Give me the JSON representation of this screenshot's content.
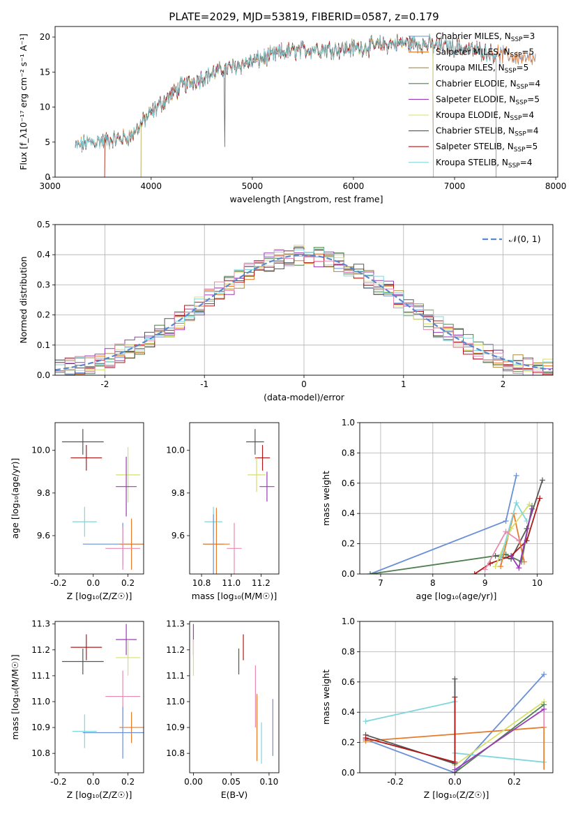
{
  "figure": {
    "title": "PLATE=2029, MJD=53819, FIBERID=0587, z=0.179"
  },
  "colors": {
    "Chabrier MILES": "#6a8fd6",
    "Salpeter MILES": "#e87b2a",
    "Kroupa MILES": "#a98a3a",
    "Chabrier ELODIE": "#4f7f4f",
    "Salpeter ELODIE": "#9a3ab6",
    "Kroupa ELODIE": "#d6e06a",
    "Chabrier STELIB": "#555555",
    "Salpeter STELIB": "#b01818",
    "Kroupa STELIB": "#7fd6db",
    "pink": "#e88ab0",
    "gauss": "#5b86d0"
  },
  "chart_data": [
    {
      "id": "spectrum",
      "type": "line",
      "title": "PLATE=2029, MJD=53819, FIBERID=0587, z=0.179",
      "xlabel": "wavelength [Angstrom, rest frame]",
      "ylabel": "Flux [f_λ10⁻¹⁷ erg cm⁻² s⁻¹ A⁻¹]",
      "xlim": [
        3050,
        8020
      ],
      "ylim": [
        0,
        21.5
      ],
      "xticks": [
        3000,
        4000,
        5000,
        6000,
        7000,
        8000
      ],
      "yticks": [
        0,
        5,
        10,
        15,
        20
      ],
      "grid": false,
      "legend_position": "right",
      "continuum": [
        [
          3250,
          4.3
        ],
        [
          3400,
          5.0
        ],
        [
          3600,
          5.3
        ],
        [
          3800,
          5.8
        ],
        [
          3950,
          8.5
        ],
        [
          4100,
          10.5
        ],
        [
          4300,
          13.0
        ],
        [
          4500,
          14.2
        ],
        [
          4700,
          15.3
        ],
        [
          5000,
          16.5
        ],
        [
          5300,
          17.8
        ],
        [
          5600,
          18.3
        ],
        [
          5900,
          18.3
        ],
        [
          6200,
          18.7
        ],
        [
          6500,
          19.2
        ],
        [
          6800,
          18.8
        ],
        [
          7100,
          18.4
        ],
        [
          7400,
          17.6
        ],
        [
          7800,
          16.6
        ]
      ],
      "series": [
        {
          "name": "Chabrier MILES",
          "label": "Chabrier MILES, N",
          "nssp": "=3",
          "xmax": 7800
        },
        {
          "name": "Salpeter MILES",
          "label": "Salpeter MILES, N",
          "nssp": "=5",
          "xmax": 7800
        },
        {
          "name": "Kroupa MILES",
          "label": "Kroupa MILES, N",
          "nssp": "=5",
          "xmin": 3540,
          "xmax": 6790
        },
        {
          "name": "Chabrier ELODIE",
          "label": "Chabrier ELODIE, N",
          "nssp": "=4",
          "xmin": 3900,
          "xmax": 6790
        },
        {
          "name": "Salpeter ELODIE",
          "label": "Salpeter ELODIE, N",
          "nssp": "=5",
          "xmin": 3900,
          "xmax": 6790
        },
        {
          "name": "Kroupa ELODIE",
          "label": "Kroupa ELODIE, N",
          "nssp": "=4",
          "xmin": 3900,
          "xmax": 6790
        },
        {
          "name": "Chabrier STELIB",
          "label": "Chabrier STELIB, N",
          "nssp": "=4",
          "xmax": 7410
        },
        {
          "name": "Salpeter STELIB",
          "label": "Salpeter STELIB, N",
          "nssp": "=5",
          "xmin": 3540,
          "xmax": 7410
        },
        {
          "name": "Kroupa STELIB",
          "label": "Kroupa STELIB, N",
          "nssp": "=4",
          "xmax": 7410
        }
      ],
      "nssp_subscript": "SSP"
    },
    {
      "id": "residuals",
      "type": "line",
      "xlabel": "(data-model)/error",
      "ylabel": "Normed distribution",
      "xlim": [
        -2.5,
        2.5
      ],
      "ylim": [
        0,
        0.5
      ],
      "xticks": [
        -2,
        -1,
        0,
        1,
        2
      ],
      "yticks": [
        0.0,
        0.1,
        0.2,
        0.3,
        0.4,
        0.5
      ],
      "grid": true,
      "legend_position": "top-right",
      "gauss_label": "𝒩(0, 1)",
      "bin_width": 0.1
    },
    {
      "id": "age-vs-Z",
      "type": "scatter",
      "xlabel": "Z [log₁₀(Z/Z☉)]",
      "ylabel": "age  [log₁₀(age/yr)]",
      "xlim": [
        -0.22,
        0.29
      ],
      "ylim": [
        9.42,
        10.13
      ],
      "xticks": [
        -0.2,
        0.0,
        0.2
      ],
      "yticks": [
        9.6,
        9.8,
        10.0
      ],
      "grid": false,
      "points": [
        {
          "s": "Chabrier STELIB",
          "x": -0.06,
          "xerr": 0.12,
          "y": 10.04,
          "yerr": 0.06
        },
        {
          "s": "Salpeter STELIB",
          "x": -0.04,
          "xerr": 0.09,
          "y": 9.965,
          "yerr": 0.06
        },
        {
          "s": "Kroupa ELODIE",
          "x": 0.2,
          "xerr": 0.07,
          "y": 9.885,
          "yerr": 0.13
        },
        {
          "s": "Salpeter ELODIE",
          "x": 0.19,
          "xerr": 0.06,
          "y": 9.83,
          "yerr": 0.14
        },
        {
          "s": "Kroupa STELIB",
          "x": -0.05,
          "xerr": 0.07,
          "y": 9.665,
          "yerr": 0.07
        },
        {
          "s": "Chabrier MILES",
          "x": 0.17,
          "xerr": 0.23,
          "y": 9.56,
          "yerr": 0.1
        },
        {
          "s": "Salpeter MILES",
          "x": 0.22,
          "xerr": 0.07,
          "y": 9.56,
          "yerr": 0.12
        },
        {
          "s": "pink",
          "x": 0.17,
          "xerr": 0.1,
          "y": 9.54,
          "yerr": 0.1
        }
      ]
    },
    {
      "id": "age-vs-mass",
      "type": "scatter",
      "xlabel": "mass [log₁₀(M/M☉)]",
      "ylim": [
        9.42,
        10.13
      ],
      "xlim": [
        10.72,
        11.32
      ],
      "xticks": [
        10.8,
        11.0,
        11.2
      ],
      "yticks": [
        9.6,
        9.8,
        10.0
      ],
      "grid": false,
      "points": [
        {
          "s": "Chabrier STELIB",
          "x": 11.16,
          "xerr": 0.06,
          "y": 10.04,
          "yerr": 0.06
        },
        {
          "s": "Salpeter STELIB",
          "x": 11.21,
          "xerr": 0.05,
          "y": 9.965,
          "yerr": 0.06
        },
        {
          "s": "Kroupa ELODIE",
          "x": 11.17,
          "xerr": 0.06,
          "y": 9.885,
          "yerr": 0.08
        },
        {
          "s": "Salpeter ELODIE",
          "x": 11.24,
          "xerr": 0.05,
          "y": 9.83,
          "yerr": 0.07
        },
        {
          "s": "Kroupa STELIB",
          "x": 10.88,
          "xerr": 0.06,
          "y": 9.665,
          "yerr": 0.07
        },
        {
          "s": "Chabrier MILES",
          "x": 10.88,
          "xerr": 0.07,
          "y": 9.56,
          "yerr": 0.14
        },
        {
          "s": "Salpeter MILES",
          "x": 10.9,
          "xerr": 0.09,
          "y": 9.56,
          "yerr": 0.17
        },
        {
          "s": "pink",
          "x": 11.02,
          "xerr": 0.05,
          "y": 9.54,
          "yerr": 0.12
        }
      ]
    },
    {
      "id": "weight-vs-age",
      "type": "line",
      "xlabel": "age  [log₁₀(age/yr)]",
      "ylabel": "mass weight",
      "xlim": [
        6.6,
        10.3
      ],
      "ylim": [
        0,
        1.0
      ],
      "xticks": [
        7,
        8,
        9,
        10
      ],
      "yticks": [
        0.0,
        0.2,
        0.4,
        0.6,
        0.8,
        1.0
      ],
      "grid": true,
      "series": [
        {
          "s": "Chabrier MILES",
          "pts": [
            [
              6.8,
              0.0
            ],
            [
              9.4,
              0.35
            ],
            [
              9.6,
              0.65
            ]
          ]
        },
        {
          "s": "Chabrier ELODIE",
          "pts": [
            [
              6.8,
              0.0
            ],
            [
              9.4,
              0.13
            ],
            [
              9.7,
              0.08
            ],
            [
              9.9,
              0.45
            ]
          ]
        },
        {
          "s": "Chabrier STELIB",
          "pts": [
            [
              9.2,
              0.12
            ],
            [
              9.5,
              0.1
            ],
            [
              9.8,
              0.3
            ],
            [
              10.1,
              0.62
            ]
          ]
        },
        {
          "s": "Salpeter STELIB",
          "pts": [
            [
              8.8,
              0.0
            ],
            [
              9.1,
              0.07
            ],
            [
              9.5,
              0.12
            ],
            [
              9.8,
              0.22
            ],
            [
              10.05,
              0.5
            ]
          ]
        },
        {
          "s": "Salpeter MILES",
          "pts": [
            [
              9.3,
              0.05
            ],
            [
              9.55,
              0.4
            ],
            [
              9.75,
              0.08
            ]
          ]
        },
        {
          "s": "Kroupa ELODIE",
          "pts": [
            [
              9.2,
              0.05
            ],
            [
              9.5,
              0.3
            ],
            [
              9.85,
              0.46
            ]
          ]
        },
        {
          "s": "Kroupa STELIB",
          "pts": [
            [
              9.3,
              0.1
            ],
            [
              9.6,
              0.47
            ],
            [
              9.8,
              0.35
            ]
          ]
        },
        {
          "s": "pink",
          "pts": [
            [
              9.0,
              0.03
            ],
            [
              9.4,
              0.28
            ],
            [
              9.65,
              0.22
            ]
          ]
        },
        {
          "s": "Salpeter ELODIE",
          "pts": [
            [
              9.5,
              0.12
            ],
            [
              9.65,
              0.04
            ],
            [
              9.9,
              0.43
            ]
          ]
        }
      ]
    },
    {
      "id": "mass-vs-Z",
      "type": "scatter",
      "xlabel": "Z [log₁₀(Z/Z☉)]",
      "ylabel": "mass [log₁₀(M/M☉)]",
      "xlim": [
        -0.22,
        0.29
      ],
      "ylim": [
        10.725,
        11.31
      ],
      "xticks": [
        -0.2,
        0.0,
        0.2
      ],
      "yticks": [
        10.8,
        10.9,
        11.0,
        11.1,
        11.2,
        11.3
      ],
      "grid": false,
      "points": [
        {
          "s": "Salpeter STELIB",
          "x": -0.04,
          "xerr": 0.09,
          "y": 11.21,
          "yerr": 0.05
        },
        {
          "s": "Salpeter ELODIE",
          "x": 0.19,
          "xerr": 0.06,
          "y": 11.24,
          "yerr": 0.06
        },
        {
          "s": "Kroupa ELODIE",
          "x": 0.2,
          "xerr": 0.07,
          "y": 11.17,
          "yerr": 0.07
        },
        {
          "s": "Chabrier STELIB",
          "x": -0.06,
          "xerr": 0.12,
          "y": 11.155,
          "yerr": 0.05
        },
        {
          "s": "pink",
          "x": 0.17,
          "xerr": 0.1,
          "y": 11.02,
          "yerr": 0.1
        },
        {
          "s": "Salpeter MILES",
          "x": 0.22,
          "xerr": 0.07,
          "y": 10.9,
          "yerr": 0.06
        },
        {
          "s": "Kroupa STELIB",
          "x": -0.05,
          "xerr": 0.07,
          "y": 10.885,
          "yerr": 0.065
        },
        {
          "s": "Chabrier MILES",
          "x": 0.17,
          "xerr": 0.23,
          "y": 10.88,
          "yerr": 0.1
        }
      ]
    },
    {
      "id": "mass-vs-ebv",
      "type": "scatter",
      "xlabel": "E(B-V)",
      "xlim": [
        -0.005,
        0.113
      ],
      "ylim": [
        10.725,
        11.31
      ],
      "xticks": [
        0.0,
        0.05,
        0.1
      ],
      "yticks": [
        10.8,
        10.9,
        11.0,
        11.1,
        11.2,
        11.3
      ],
      "grid": false,
      "points": [
        {
          "s": "Salpeter ELODIE",
          "x": 0.0,
          "xerr": 0.0,
          "y": 11.24,
          "yerr": 0.06
        },
        {
          "s": "Kroupa ELODIE",
          "x": 0.0,
          "xerr": 0.0,
          "y": 11.17,
          "yerr": 0.07
        },
        {
          "s": "Salpeter STELIB",
          "x": 0.066,
          "xerr": 0.0,
          "y": 11.21,
          "yerr": 0.05
        },
        {
          "s": "Chabrier STELIB",
          "x": 0.06,
          "xerr": 0.0,
          "y": 11.155,
          "yerr": 0.05
        },
        {
          "s": "pink",
          "x": 0.082,
          "xerr": 0.0,
          "y": 11.02,
          "yerr": 0.12
        },
        {
          "s": "Salpeter MILES",
          "x": 0.084,
          "xerr": 0.0,
          "y": 10.9,
          "yerr": 0.13
        },
        {
          "s": "Kroupa STELIB",
          "x": 0.09,
          "xerr": 0.0,
          "y": 10.84,
          "yerr": 0.08
        },
        {
          "s": "Chabrier MILES",
          "x": 0.105,
          "xerr": 0.0,
          "y": 10.9,
          "yerr": 0.11
        }
      ]
    },
    {
      "id": "weight-vs-Z",
      "type": "line",
      "xlabel": "Z [log₁₀(Z/Z☉)]",
      "ylabel": "mass weight",
      "xlim": [
        -0.32,
        0.33
      ],
      "ylim": [
        0,
        1.0
      ],
      "xticks": [
        -0.2,
        0.0,
        0.2
      ],
      "yticks": [
        0.0,
        0.2,
        0.4,
        0.6,
        0.8,
        1.0
      ],
      "grid": true,
      "series": [
        {
          "s": "Chabrier MILES",
          "pts": [
            [
              -0.3,
              0.22
            ],
            [
              0.0,
              0.0
            ],
            [
              0.3,
              0.65
            ]
          ]
        },
        {
          "s": "Kroupa STELIB",
          "pts": [
            [
              -0.3,
              0.34
            ],
            [
              0.0,
              0.47
            ],
            [
              0.0,
              0.13
            ],
            [
              0.3,
              0.07
            ]
          ]
        },
        {
          "s": "Salpeter MILES",
          "pts": [
            [
              -0.3,
              0.21
            ],
            [
              0.3,
              0.3
            ]
          ]
        },
        {
          "s": "Kroupa ELODIE",
          "pts": [
            [
              0.0,
              0.05
            ],
            [
              0.3,
              0.47
            ]
          ]
        },
        {
          "s": "Chabrier ELODIE",
          "pts": [
            [
              0.0,
              0.0
            ],
            [
              0.3,
              0.45
            ]
          ]
        },
        {
          "s": "Salpeter ELODIE",
          "pts": [
            [
              0.0,
              0.02
            ],
            [
              0.3,
              0.42
            ]
          ]
        },
        {
          "s": "Chabrier STELIB",
          "pts": [
            [
              -0.3,
              0.25
            ],
            [
              0.0,
              0.06
            ],
            [
              0.0,
              0.62
            ]
          ]
        },
        {
          "s": "Salpeter STELIB",
          "pts": [
            [
              -0.3,
              0.23
            ],
            [
              0.0,
              0.07
            ],
            [
              0.0,
              0.5
            ]
          ]
        }
      ],
      "vmarks": [
        {
          "s": "Chabrier STELIB",
          "x": 0.0,
          "y0": 0.06,
          "y1": 0.62
        },
        {
          "s": "Salpeter STELIB",
          "x": 0.0,
          "y0": 0.07,
          "y1": 0.5
        },
        {
          "s": "pink",
          "x": 0.3,
          "y0": 0.05,
          "y1": 0.4
        },
        {
          "s": "Salpeter MILES",
          "x": 0.3,
          "y0": 0.02,
          "y1": 0.3
        }
      ]
    }
  ]
}
